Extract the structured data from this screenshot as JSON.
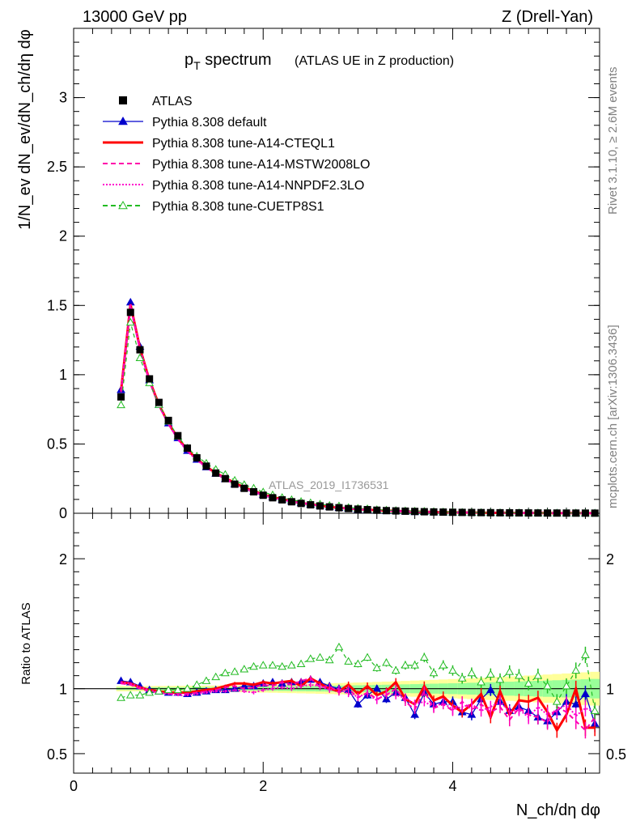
{
  "header": {
    "energy_label": "13000 GeV pp",
    "process_label": "Z (Drell-Yan)"
  },
  "side_labels": {
    "rivet": "Rivet 3.1.10, ≥ 2.6M events",
    "mcplots": "mcplots.cern.ch [arXiv:1306.3436]"
  },
  "main_plot": {
    "title_main": "p",
    "title_sub": "T",
    "title_word": " spectrum",
    "title_note": "(ATLAS UE in Z production)",
    "ylabel": "1/N_ev dN_ev/dN_ch/dη dφ",
    "watermark": "ATLAS_2019_I1736531",
    "y_ticks": [
      "0",
      "0.5",
      "1",
      "1.5",
      "2",
      "2.5",
      "3"
    ]
  },
  "ratio_plot": {
    "ylabel": "Ratio to ATLAS",
    "y_ticks": [
      "0.5",
      "1",
      "2"
    ],
    "y_ticks_right": [
      "0.5",
      "1",
      "2"
    ]
  },
  "x_axis": {
    "label": "N_ch/dη dφ",
    "ticks": [
      "0",
      "2",
      "4"
    ]
  },
  "legend": [
    {
      "label": "ATLAS",
      "color": "#000000",
      "marker": "square",
      "line": "none"
    },
    {
      "label": "Pythia 8.308 default",
      "color": "#0000cc",
      "marker": "triangle",
      "line": "solid"
    },
    {
      "label": "Pythia 8.308 tune-A14-CTEQL1",
      "color": "#ff0000",
      "marker": "none",
      "line": "solid-thick"
    },
    {
      "label": "Pythia 8.308 tune-A14-MSTW2008LO",
      "color": "#ff00aa",
      "marker": "none",
      "line": "dashed"
    },
    {
      "label": "Pythia 8.308 tune-A14-NNPDF2.3LO",
      "color": "#ff00cc",
      "marker": "none",
      "line": "dotted"
    },
    {
      "label": "Pythia 8.308 tune-CUETP8S1",
      "color": "#22bb22",
      "marker": "open-triangle",
      "line": "dashed"
    }
  ],
  "chart_data": {
    "type": "scatter",
    "x": [
      0.5,
      0.6,
      0.7,
      0.8,
      0.9,
      1.0,
      1.1,
      1.2,
      1.3,
      1.4,
      1.5,
      1.6,
      1.7,
      1.8,
      1.9,
      2.0,
      2.1,
      2.2,
      2.3,
      2.4,
      2.5,
      2.6,
      2.7,
      2.8,
      2.9,
      3.0,
      3.1,
      3.2,
      3.3,
      3.4,
      3.5,
      3.6,
      3.7,
      3.8,
      3.9,
      4.0,
      4.1,
      4.2,
      4.3,
      4.4,
      4.5,
      4.6,
      4.7,
      4.8,
      4.9,
      5.0,
      5.1,
      5.2,
      5.3,
      5.4,
      5.5
    ],
    "xlim": [
      0,
      5.55
    ],
    "ylim_main": [
      0,
      3.5
    ],
    "ylim_ratio": [
      0.35,
      2.35
    ],
    "series": [
      {
        "name": "ATLAS",
        "values": [
          0.84,
          1.45,
          1.18,
          0.97,
          0.8,
          0.67,
          0.56,
          0.47,
          0.4,
          0.34,
          0.29,
          0.25,
          0.21,
          0.18,
          0.155,
          0.13,
          0.112,
          0.097,
          0.083,
          0.071,
          0.061,
          0.053,
          0.046,
          0.04,
          0.034,
          0.03,
          0.026,
          0.022,
          0.019,
          0.017,
          0.015,
          0.013,
          0.011,
          0.0095,
          0.0083,
          0.0072,
          0.0063,
          0.0055,
          0.0048,
          0.0042,
          0.0036,
          0.0032,
          0.0028,
          0.0024,
          0.0021,
          0.0018,
          0.0016,
          0.0014,
          0.0012,
          0.0011,
          0.0009
        ]
      },
      {
        "name": "Pythia 8.308 default",
        "values": [
          0.88,
          1.53,
          1.19,
          0.96,
          0.79,
          0.66,
          0.55,
          0.455,
          0.385,
          0.33,
          0.285,
          0.245,
          0.21,
          0.183,
          0.158,
          0.136,
          0.118,
          0.102,
          0.088,
          0.076,
          0.066,
          0.057,
          0.049,
          0.042,
          0.036,
          0.031,
          0.027,
          0.023,
          0.02,
          0.017,
          0.015,
          0.013,
          0.011,
          0.0093,
          0.0079,
          0.0068,
          0.0058,
          0.005,
          0.0043,
          0.0037,
          0.0031,
          0.0027,
          0.0023,
          0.002,
          0.0017,
          0.0015,
          0.0013,
          0.0011,
          0.0009,
          0.0008,
          0.0007
        ]
      }
    ],
    "ratios": [
      {
        "name": "Pythia 8.308 default",
        "values": [
          1.06,
          1.05,
          1.02,
          0.99,
          0.98,
          0.97,
          0.97,
          0.96,
          0.97,
          0.98,
          0.99,
          0.99,
          1.0,
          1.02,
          1.02,
          1.04,
          1.05,
          1.04,
          1.05,
          1.05,
          1.07,
          1.05,
          1.02,
          1.0,
          0.99,
          0.88,
          0.95,
          1.0,
          0.92,
          0.97,
          0.93,
          0.8,
          0.97,
          0.88,
          0.9,
          0.9,
          0.82,
          0.8,
          0.92,
          0.99,
          0.9,
          0.83,
          0.86,
          0.83,
          0.78,
          0.75,
          0.82,
          0.9,
          0.88,
          0.96,
          0.73
        ]
      },
      {
        "name": "Pythia 8.308 tune-A14-CTEQL1",
        "values": [
          1.05,
          1.04,
          1.01,
          0.99,
          0.98,
          0.97,
          0.97,
          0.97,
          0.98,
          0.99,
          1.0,
          1.02,
          1.04,
          1.04,
          1.03,
          1.05,
          1.04,
          1.05,
          1.06,
          1.02,
          1.08,
          1.04,
          1.0,
          0.98,
          1.03,
          0.96,
          1.02,
          0.95,
          0.98,
          1.05,
          0.92,
          0.88,
          1.02,
          0.91,
          0.94,
          0.87,
          0.82,
          0.88,
          0.96,
          0.78,
          0.98,
          0.8,
          0.91,
          0.9,
          0.93,
          0.82,
          0.68,
          0.8,
          1.0,
          0.7,
          0.7
        ]
      },
      {
        "name": "Pythia 8.308 tune-A14-MSTW2008LO",
        "values": [
          1.04,
          1.03,
          1.0,
          0.98,
          0.97,
          0.96,
          0.96,
          0.96,
          0.97,
          0.98,
          0.99,
          1.01,
          1.02,
          1.0,
          1.01,
          1.03,
          1.02,
          1.05,
          1.03,
          1.06,
          1.08,
          1.01,
          1.02,
          0.97,
          1.0,
          0.93,
          0.97,
          0.92,
          0.95,
          1.0,
          0.9,
          0.84,
          0.98,
          0.85,
          0.88,
          0.83,
          0.9,
          0.84,
          0.88,
          0.82,
          0.86,
          0.76,
          0.85,
          0.8,
          0.78,
          0.74,
          0.86,
          0.82,
          0.75,
          0.68,
          0.78
        ]
      },
      {
        "name": "Pythia 8.308 tune-A14-NNPDF2.3LO",
        "values": [
          1.05,
          1.04,
          1.01,
          0.99,
          0.97,
          0.96,
          0.95,
          0.95,
          0.96,
          0.97,
          0.98,
          0.98,
          0.99,
          0.98,
          0.97,
          0.99,
          1.0,
          1.01,
          1.0,
          1.02,
          1.03,
          1.02,
          0.99,
          1.0,
          0.96,
          0.94,
          0.96,
          0.91,
          0.97,
          0.95,
          0.93,
          0.88,
          0.9,
          0.86,
          0.89,
          0.84,
          0.86,
          0.88,
          0.83,
          0.86,
          0.9,
          0.82,
          0.84,
          0.78,
          0.86,
          0.8,
          0.83,
          0.88,
          0.79,
          0.85,
          0.82
        ]
      },
      {
        "name": "Pythia 8.308 tune-CUETP8S1",
        "values": [
          0.93,
          0.95,
          0.95,
          0.97,
          0.98,
          0.99,
          0.99,
          1.0,
          1.03,
          1.06,
          1.09,
          1.12,
          1.13,
          1.15,
          1.17,
          1.18,
          1.18,
          1.17,
          1.18,
          1.19,
          1.23,
          1.24,
          1.22,
          1.32,
          1.21,
          1.19,
          1.24,
          1.16,
          1.2,
          1.14,
          1.18,
          1.18,
          1.24,
          1.12,
          1.18,
          1.14,
          1.08,
          1.12,
          1.05,
          1.11,
          1.07,
          1.13,
          1.1,
          1.04,
          1.1,
          1.02,
          0.9,
          1.02,
          1.14,
          1.26,
          0.83
        ]
      }
    ]
  }
}
